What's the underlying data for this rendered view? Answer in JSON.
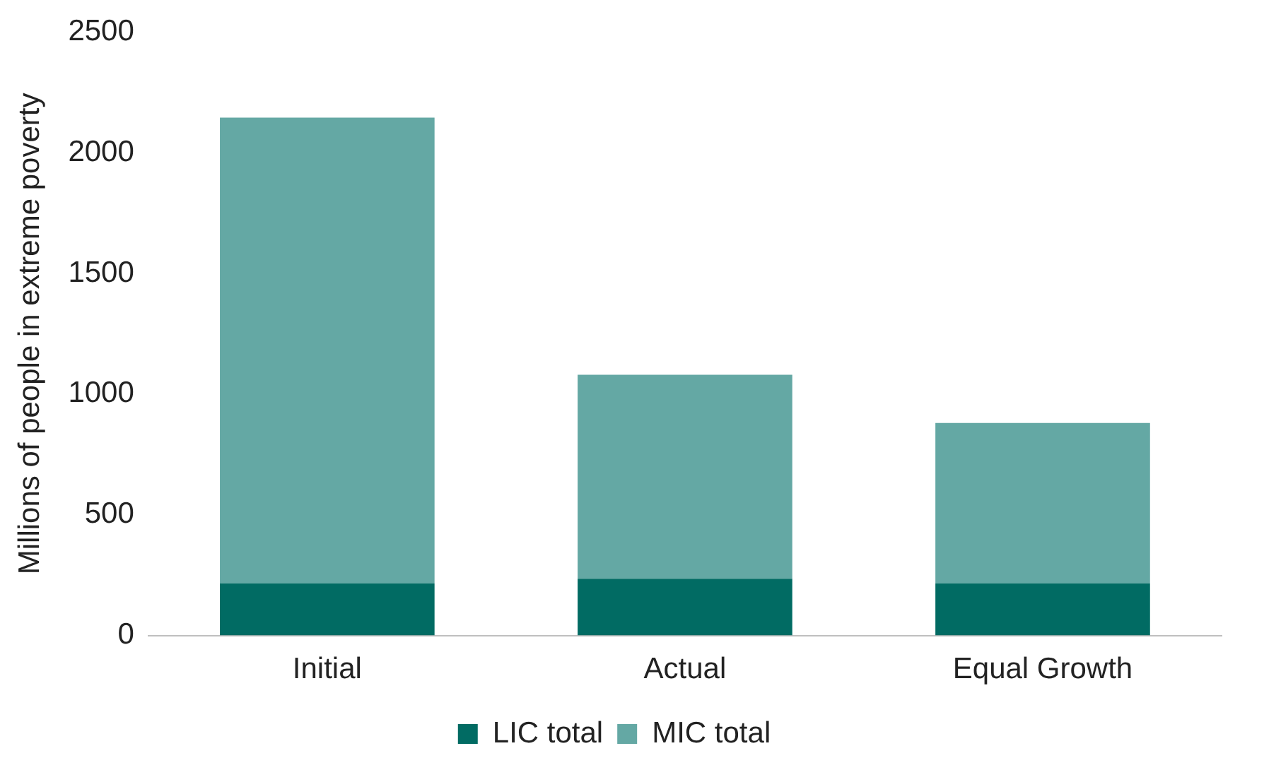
{
  "chart_data": {
    "type": "bar",
    "ylabel": "Millions of people in extreme poverty",
    "categories": [
      "Initial",
      "Actual",
      "Equal Growth"
    ],
    "stacked": true,
    "series": [
      {
        "name": "LIC total",
        "color": "#016b63",
        "values": [
          215,
          235,
          215
        ]
      },
      {
        "name": "MIC total",
        "color": "#64a8a4",
        "values": [
          1930,
          845,
          665
        ]
      }
    ],
    "ylim": [
      0,
      2500
    ],
    "yticks": [
      0,
      500,
      1000,
      1500,
      2000,
      2500
    ],
    "grid": false,
    "legend": "bottom"
  }
}
